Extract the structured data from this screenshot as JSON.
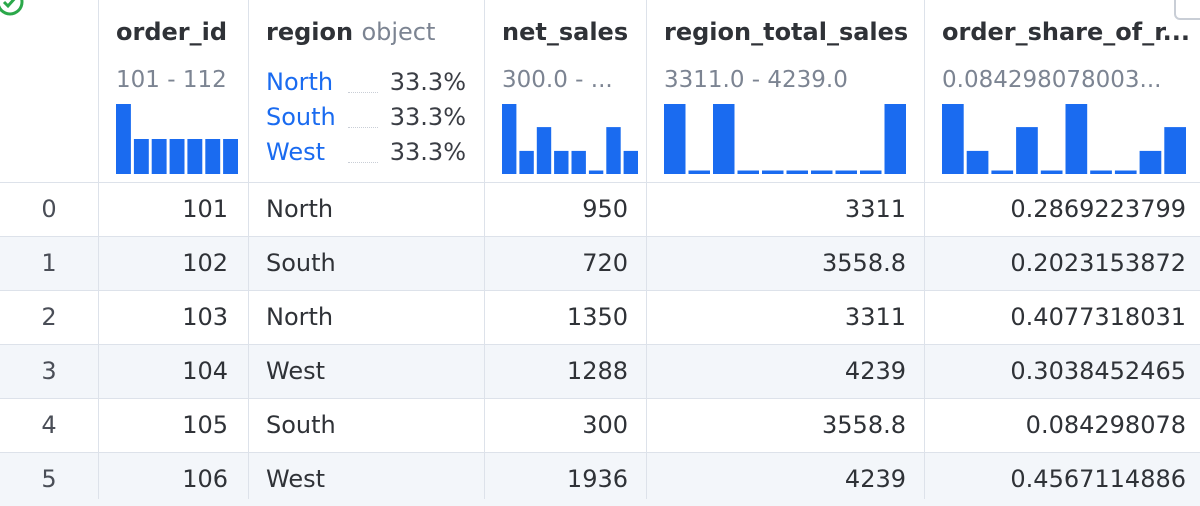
{
  "columns": [
    {
      "name": "order_id",
      "type": "",
      "range": "101 - 112"
    },
    {
      "name": "region",
      "type": "object",
      "categories": [
        {
          "label": "North",
          "pct": "33.3%"
        },
        {
          "label": "South",
          "pct": "33.3%"
        },
        {
          "label": "West",
          "pct": "33.3%"
        }
      ]
    },
    {
      "name": "net_sales",
      "type": "",
      "range": "300.0 - ..."
    },
    {
      "name": "region_total_sales",
      "type": "",
      "range": "3311.0 - 4239.0"
    },
    {
      "name": "order_share_of_r...",
      "type": "",
      "range": "0.084298078003..."
    }
  ],
  "histograms": {
    "order_id": [
      1.0,
      0.5,
      0.5,
      0.5,
      0.5,
      0.5,
      0.5
    ],
    "net_sales": [
      1.0,
      0.33,
      0.67,
      0.33,
      0.33,
      0.05,
      0.67,
      0.33
    ],
    "region_total_sales": [
      1.0,
      0.05,
      1.0,
      0.05,
      0.05,
      0.05,
      0.05,
      0.05,
      0.05,
      1.0
    ],
    "order_share": [
      1.0,
      0.33,
      0.05,
      0.67,
      0.05,
      1.0,
      0.05,
      0.05,
      0.33,
      0.67
    ]
  },
  "rows": [
    {
      "index": "0",
      "order_id": "101",
      "region": "North",
      "net_sales": "950",
      "region_total_sales": "3311",
      "order_share": "0.2869223799"
    },
    {
      "index": "1",
      "order_id": "102",
      "region": "South",
      "net_sales": "720",
      "region_total_sales": "3558.8",
      "order_share": "0.2023153872"
    },
    {
      "index": "2",
      "order_id": "103",
      "region": "North",
      "net_sales": "1350",
      "region_total_sales": "3311",
      "order_share": "0.4077318031"
    },
    {
      "index": "3",
      "order_id": "104",
      "region": "West",
      "net_sales": "1288",
      "region_total_sales": "4239",
      "order_share": "0.3038452465"
    },
    {
      "index": "4",
      "order_id": "105",
      "region": "South",
      "net_sales": "300",
      "region_total_sales": "3558.8",
      "order_share": "0.084298078"
    },
    {
      "index": "5",
      "order_id": "106",
      "region": "West",
      "net_sales": "1936",
      "region_total_sales": "4239",
      "order_share": "0.4567114886"
    }
  ],
  "colors": {
    "accent": "#1a6bf0",
    "stripe": "#f3f6fa",
    "border": "#dde2ea"
  }
}
